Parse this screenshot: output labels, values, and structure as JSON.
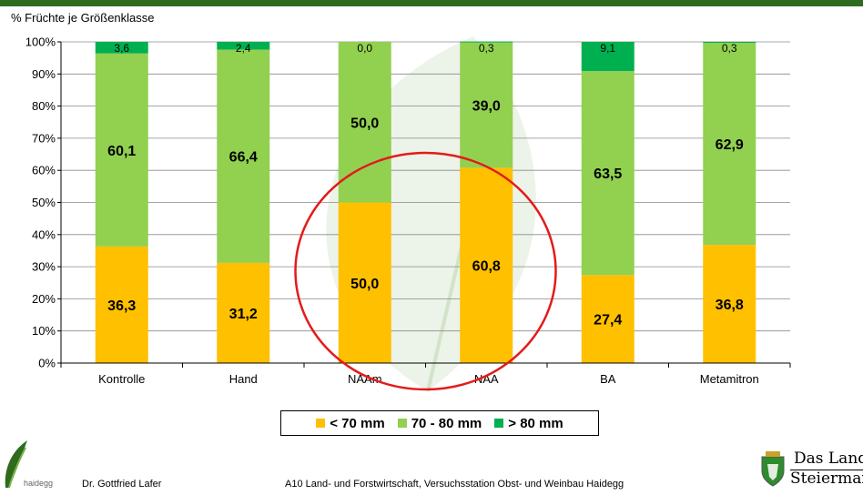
{
  "page": {
    "y_axis_title": "% Früchte je Größenklasse",
    "footer_author": "Dr. Gottfried Lafer",
    "footer_institution": "A10 Land- und Forstwirtschaft, Versuchsstation Obst- und Weinbau Haidegg",
    "logo_left_text": "haidegg",
    "logo_right_line1": "Das Land",
    "logo_right_line2": "Steiermark"
  },
  "colors": {
    "small": "#ffc000",
    "medium": "#92d050",
    "large": "#00b050",
    "highlight_circle": "#e31b1b",
    "header_bar": "#2e6b1f"
  },
  "chart_data": {
    "type": "bar",
    "stacked": true,
    "categories": [
      "Kontrolle",
      "Hand",
      "NAAm",
      "NAA",
      "BA",
      "Metamitron"
    ],
    "series": [
      {
        "name": "< 70 mm",
        "values": [
          36.3,
          31.2,
          50.0,
          60.8,
          27.4,
          36.8
        ],
        "labels": [
          "36,3",
          "31,2",
          "50,0",
          "60,8",
          "27,4",
          "36,8"
        ]
      },
      {
        "name": "70 - 80 mm",
        "values": [
          60.1,
          66.4,
          50.0,
          39.0,
          63.5,
          62.9
        ],
        "labels": [
          "60,1",
          "66,4",
          "50,0",
          "39,0",
          "63,5",
          "62,9"
        ]
      },
      {
        "name": "> 80 mm",
        "values": [
          3.6,
          2.4,
          0.0,
          0.3,
          9.1,
          0.3
        ],
        "labels": [
          "3,6",
          "2,4",
          "0,0",
          "0,3",
          "9,1",
          "0,3"
        ]
      }
    ],
    "ylim": [
      0,
      100
    ],
    "yticks": [
      "0%",
      "10%",
      "20%",
      "30%",
      "40%",
      "50%",
      "60%",
      "70%",
      "80%",
      "90%",
      "100%"
    ],
    "gridlines": true,
    "legend_position": "bottom",
    "annotation": "red circle highlighting NAAm and NAA"
  }
}
